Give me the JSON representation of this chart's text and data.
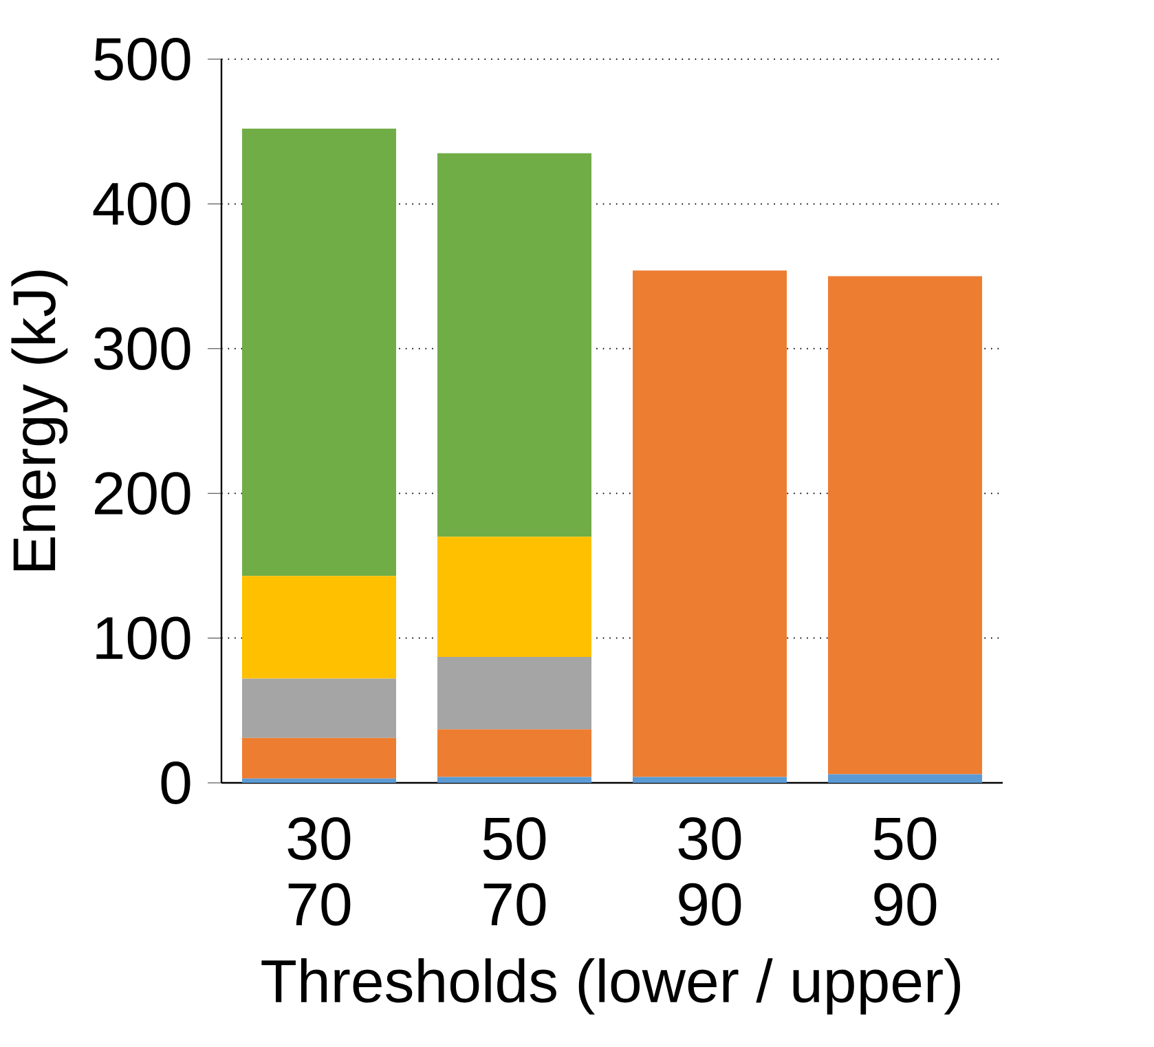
{
  "chart_data": {
    "type": "bar",
    "stacked": true,
    "xlabel": "Thresholds (lower / upper)",
    "ylabel": "Energy (kJ)",
    "categories": [
      "30 70",
      "50 70",
      "30 90",
      "50 90"
    ],
    "ylim": [
      0,
      500
    ],
    "yticks": [
      0,
      100,
      200,
      300,
      400,
      500
    ],
    "grid": "y",
    "series": [
      {
        "color": "#5b9bd5",
        "values": [
          3,
          4,
          4,
          6
        ]
      },
      {
        "color": "#ed7d31",
        "values": [
          28,
          33,
          350,
          344
        ]
      },
      {
        "color": "#a5a5a5",
        "values": [
          41,
          50,
          0,
          0
        ]
      },
      {
        "color": "#ffc000",
        "values": [
          71,
          83,
          0,
          0
        ]
      },
      {
        "color": "#70ad47",
        "values": [
          309,
          265,
          0,
          0
        ]
      }
    ]
  }
}
